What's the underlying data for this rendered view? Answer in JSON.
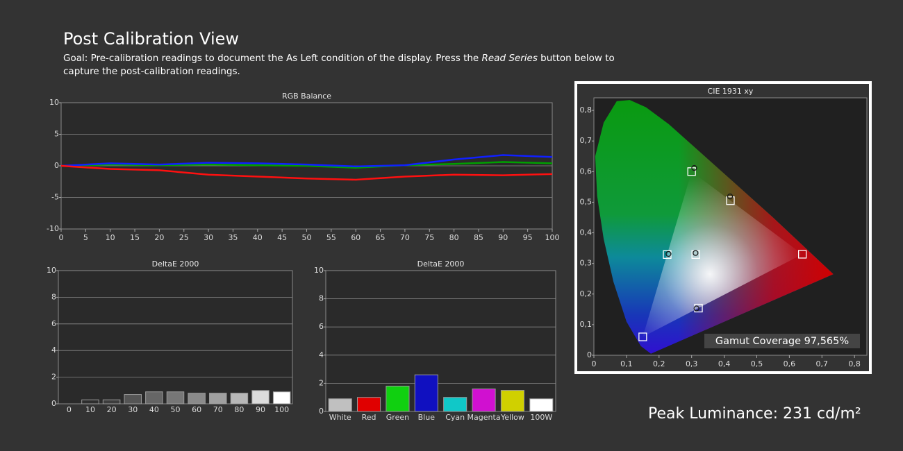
{
  "header": {
    "title": "Post Calibration View",
    "goal": [
      "Goal: Pre-calibration readings to document the As Left condition of the display. Press the ",
      "Read Series",
      " button below to capture the post-calibration readings."
    ]
  },
  "chart_data": [
    {
      "type": "line",
      "title": "RGB Balance",
      "grid": true,
      "x": [
        0,
        10,
        20,
        30,
        40,
        50,
        60,
        70,
        80,
        90,
        100
      ],
      "series": [
        {
          "color": "#00a000",
          "values": [
            0,
            0.2,
            0.1,
            0.2,
            0.1,
            0,
            -0.3,
            0.1,
            0.3,
            0.6,
            0.4
          ]
        },
        {
          "color": "#1020ff",
          "values": [
            0,
            0.4,
            0.2,
            0.5,
            0.4,
            0.2,
            -0.1,
            0.1,
            1.0,
            1.7,
            1.4
          ]
        },
        {
          "color": "#ff1010",
          "values": [
            0,
            -0.5,
            -0.7,
            -1.4,
            -1.7,
            -2.0,
            -2.2,
            -1.7,
            -1.4,
            -1.5,
            -1.3
          ]
        }
      ],
      "xlim": [
        0,
        100
      ],
      "xticks": [
        0,
        5,
        10,
        15,
        20,
        25,
        30,
        35,
        40,
        45,
        50,
        55,
        60,
        65,
        70,
        75,
        80,
        85,
        90,
        95,
        100
      ],
      "ylim": [
        -10,
        10
      ],
      "yticks": [
        -10,
        -5,
        0,
        5,
        10
      ]
    },
    {
      "type": "bar",
      "title": "DeltaE 2000",
      "grid": true,
      "categories": [
        "0",
        "10",
        "20",
        "30",
        "40",
        "50",
        "60",
        "70",
        "80",
        "90",
        "100"
      ],
      "values": [
        0,
        0.3,
        0.3,
        0.7,
        0.9,
        0.9,
        0.8,
        0.8,
        0.8,
        1.0,
        0.9
      ],
      "colors": [
        "#1a1a1a",
        "#2e2e2e",
        "#3d3d3d",
        "#555555",
        "#666666",
        "#777777",
        "#8a8a8a",
        "#a0a0a0",
        "#b8b8b8",
        "#dcdcdc",
        "#ffffff"
      ],
      "ylim": [
        0,
        10
      ],
      "yticks": [
        0,
        2,
        4,
        6,
        8,
        10
      ]
    },
    {
      "type": "bar",
      "title": "DeltaE 2000",
      "grid": true,
      "categories": [
        "White",
        "Red",
        "Green",
        "Blue",
        "Cyan",
        "Magenta",
        "Yellow",
        "100W"
      ],
      "values": [
        0.9,
        1.0,
        1.8,
        2.6,
        1.0,
        1.6,
        1.5,
        0.9
      ],
      "colors": [
        "#c0c0c0",
        "#e00000",
        "#10d010",
        "#1010c0",
        "#10c8c8",
        "#d010d0",
        "#d0d000",
        "#ffffff"
      ],
      "ylim": [
        0,
        10
      ],
      "yticks": [
        0,
        2,
        4,
        6,
        8,
        10
      ]
    },
    {
      "type": "scatter",
      "title": "CIE 1931 xy",
      "grid": false,
      "series": [
        {
          "marker": "square",
          "color": "#ffffff",
          "x": [
            0.64,
            0.3,
            0.15,
            0.3127,
            0.225,
            0.321,
            0.419
          ],
          "y": [
            0.33,
            0.6,
            0.06,
            0.329,
            0.329,
            0.154,
            0.505
          ]
        },
        {
          "marker": "circle",
          "color": "#1a1a1a",
          "x": [
            0.308,
            0.418,
            0.312,
            0.229,
            0.315
          ],
          "y": [
            0.612,
            0.519,
            0.334,
            0.331,
            0.153
          ]
        }
      ],
      "annotation": "Gamut Coverage 97,565%",
      "xlim": [
        0,
        0.838
      ],
      "xticks": [
        0,
        {
          "value": 0.1,
          "label": "0,1"
        },
        {
          "value": 0.2,
          "label": "0,2"
        },
        {
          "value": 0.3,
          "label": "0,3"
        },
        {
          "value": 0.4,
          "label": "0,4"
        },
        {
          "value": 0.5,
          "label": "0,5"
        },
        {
          "value": 0.6,
          "label": "0,6"
        },
        {
          "value": 0.7,
          "label": "0,7"
        },
        {
          "value": 0.8,
          "label": "0,8"
        }
      ],
      "ylim": [
        0,
        0.841
      ],
      "yticks": [
        0,
        {
          "value": 0.1,
          "label": "0,1"
        },
        {
          "value": 0.2,
          "label": "0,2"
        },
        {
          "value": 0.3,
          "label": "0,3"
        },
        {
          "value": 0.4,
          "label": "0,4"
        },
        {
          "value": 0.5,
          "label": "0,5"
        },
        {
          "value": 0.6,
          "label": "0,6"
        },
        {
          "value": 0.7,
          "label": "0,7"
        },
        {
          "value": 0.8,
          "label": "0,8"
        }
      ]
    }
  ],
  "footer": {
    "peak_luminance": "Peak Luminance: 231 cd/m²"
  }
}
